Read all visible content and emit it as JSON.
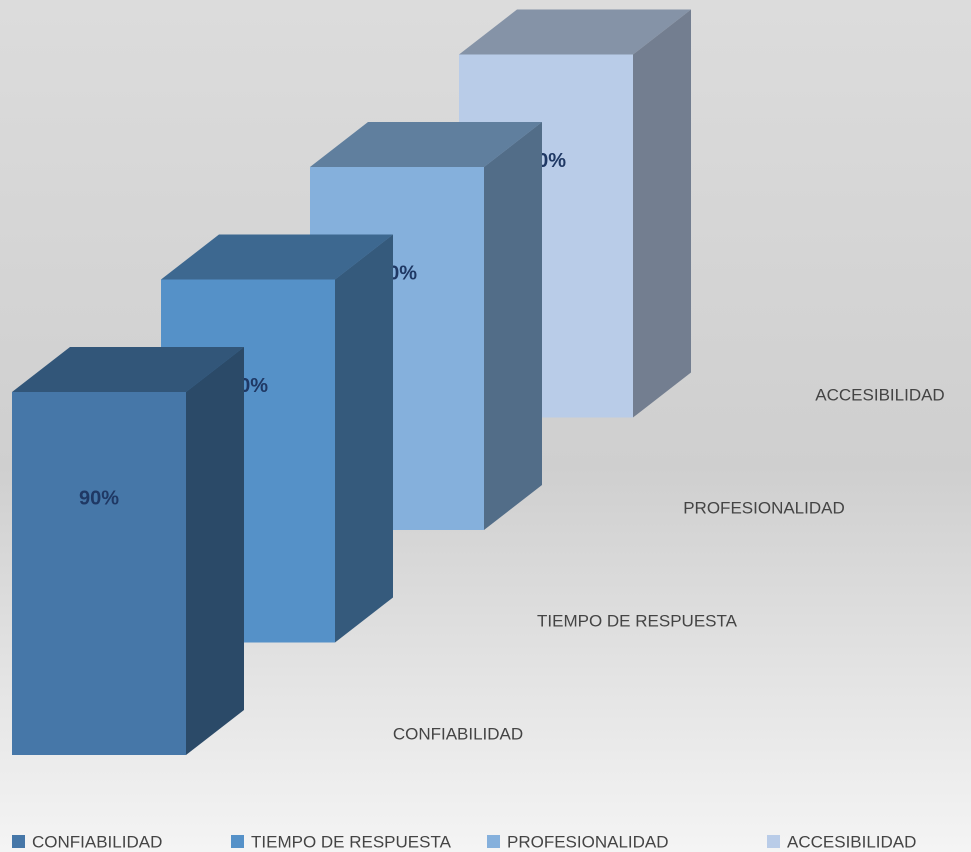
{
  "chart_data": {
    "type": "bar3d",
    "categories": [
      "CONFIABILIDAD",
      "TIEMPO DE RESPUESTA",
      "PROFESIONALIDAD",
      "ACCESIBILIDAD"
    ],
    "series": [
      {
        "name": "CONFIABILIDAD",
        "color": "#4677a8",
        "values": [
          90,
          null,
          null,
          null
        ],
        "value_labels": [
          "90%",
          null,
          null,
          null
        ]
      },
      {
        "name": "TIEMPO DE RESPUESTA",
        "color": "#5591c8",
        "values": [
          null,
          90,
          null,
          null
        ],
        "value_labels": [
          null,
          "90%",
          null,
          null
        ]
      },
      {
        "name": "PROFESIONALIDAD",
        "color": "#85b0dc",
        "values": [
          null,
          null,
          90,
          null
        ],
        "value_labels": [
          null,
          null,
          "90%",
          null
        ]
      },
      {
        "name": "ACCESIBILIDAD",
        "color": "#b9cce8",
        "values": [
          null,
          null,
          null,
          90
        ],
        "value_labels": [
          null,
          null,
          null,
          "90%"
        ]
      }
    ],
    "legend": "bottom"
  }
}
